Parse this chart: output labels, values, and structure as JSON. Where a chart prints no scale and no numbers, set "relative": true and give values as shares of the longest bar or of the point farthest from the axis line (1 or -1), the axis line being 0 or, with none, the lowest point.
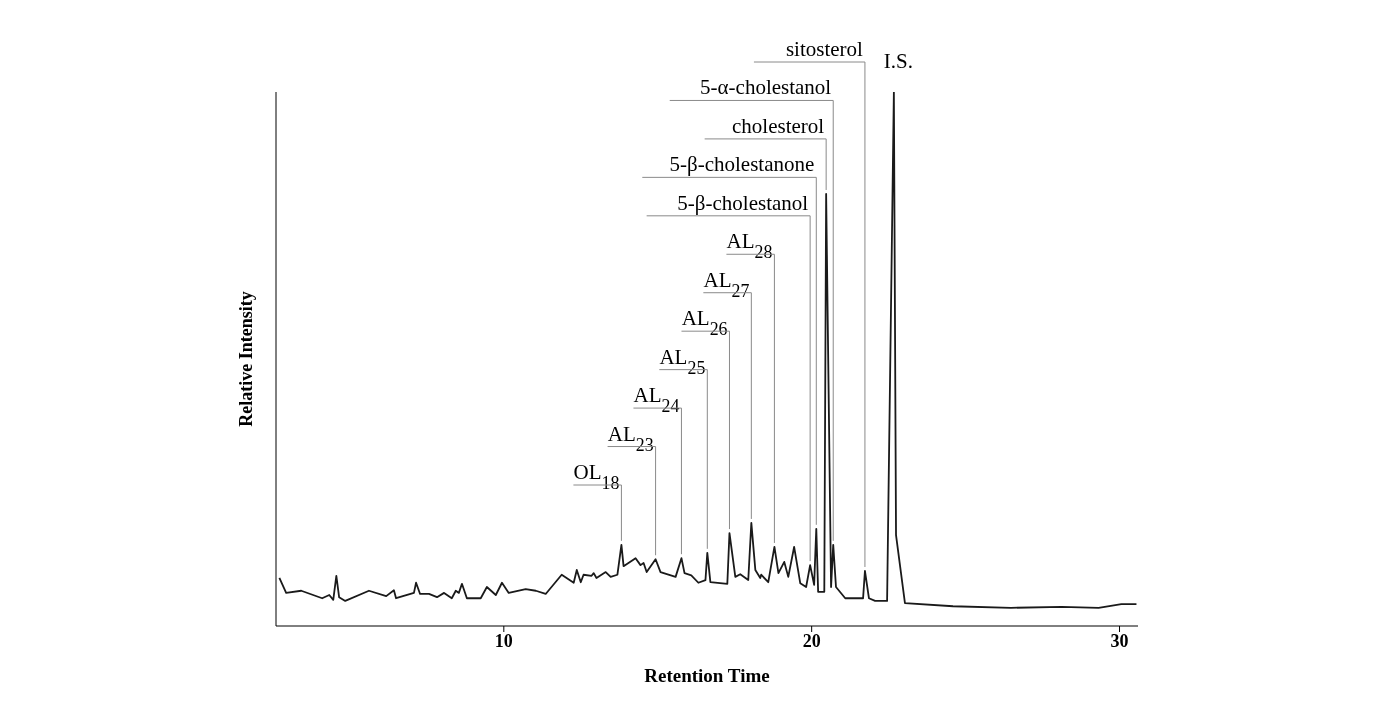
{
  "chart_data": {
    "type": "line",
    "relative": true,
    "xlabel": "Retention Time",
    "ylabel": "Relative Intensity",
    "color": "#1a1a1a",
    "xlim": [
      2.6,
      30.6
    ],
    "xticks": [
      10,
      20,
      30
    ],
    "marker": "none",
    "line_style": "solid",
    "x": [
      2.71,
      2.93,
      3.42,
      4.1,
      4.33,
      4.46,
      4.56,
      4.65,
      4.85,
      5.62,
      6.18,
      6.43,
      6.5,
      7.08,
      7.15,
      7.28,
      7.57,
      7.83,
      8.06,
      8.31,
      8.44,
      8.54,
      8.64,
      8.8,
      9.25,
      9.45,
      9.74,
      9.94,
      10.16,
      10.71,
      11.04,
      11.36,
      11.88,
      12.27,
      12.37,
      12.5,
      12.59,
      12.85,
      12.92,
      13.01,
      13.31,
      13.47,
      13.69,
      13.82,
      13.89,
      14.28,
      14.44,
      14.54,
      14.64,
      14.93,
      15.09,
      15.58,
      15.77,
      15.87,
      16.09,
      16.32,
      16.55,
      16.61,
      16.71,
      17.26,
      17.33,
      17.52,
      17.68,
      17.94,
      18.04,
      18.17,
      18.33,
      18.36,
      18.59,
      18.79,
      18.92,
      19.11,
      19.24,
      19.43,
      19.63,
      19.82,
      19.95,
      20.08,
      20.15,
      20.21,
      20.41,
      20.47,
      20.63,
      20.7,
      20.79,
      21.09,
      21.67,
      21.73,
      21.86,
      22.06,
      22.45,
      22.67,
      22.74,
      23.03,
      24.59,
      26.47,
      28.12,
      29.32,
      30.06,
      30.55
    ],
    "values": [
      0.09,
      0.062,
      0.066,
      0.052,
      0.058,
      0.049,
      0.094,
      0.054,
      0.047,
      0.066,
      0.056,
      0.067,
      0.052,
      0.062,
      0.081,
      0.06,
      0.06,
      0.054,
      0.062,
      0.052,
      0.066,
      0.062,
      0.079,
      0.052,
      0.052,
      0.073,
      0.058,
      0.081,
      0.062,
      0.069,
      0.066,
      0.06,
      0.096,
      0.081,
      0.105,
      0.082,
      0.096,
      0.094,
      0.099,
      0.09,
      0.101,
      0.092,
      0.096,
      0.152,
      0.112,
      0.127,
      0.114,
      0.118,
      0.101,
      0.125,
      0.101,
      0.092,
      0.127,
      0.099,
      0.095,
      0.081,
      0.086,
      0.137,
      0.082,
      0.079,
      0.174,
      0.092,
      0.097,
      0.086,
      0.193,
      0.105,
      0.09,
      0.096,
      0.082,
      0.148,
      0.099,
      0.12,
      0.092,
      0.148,
      0.08,
      0.073,
      0.114,
      0.077,
      0.182,
      0.064,
      0.064,
      0.809,
      0.073,
      0.152,
      0.073,
      0.052,
      0.052,
      0.103,
      0.052,
      0.047,
      0.047,
      1.0,
      0.17,
      0.043,
      0.037,
      0.034,
      0.036,
      0.034,
      0.041,
      0.041
    ],
    "annotations": [
      {
        "text": "OL$_{18}$",
        "x": 13.82,
        "y": 0.152
      },
      {
        "text": "AL$_{23}$",
        "x": 14.93,
        "y": 0.125
      },
      {
        "text": "AL$_{24}$",
        "x": 15.77,
        "y": 0.127
      },
      {
        "text": "AL$_{25}$",
        "x": 16.61,
        "y": 0.137
      },
      {
        "text": "AL$_{26}$",
        "x": 17.33,
        "y": 0.174
      },
      {
        "text": "AL$_{27}$",
        "x": 18.04,
        "y": 0.193
      },
      {
        "text": "AL$_{28}$",
        "x": 18.79,
        "y": 0.148
      },
      {
        "text": "5-β-cholestanol",
        "x": 19.95,
        "y": 0.114
      },
      {
        "text": "5-β-cholestanone",
        "x": 20.15,
        "y": 0.182
      },
      {
        "text": "cholesterol",
        "x": 20.47,
        "y": 0.809
      },
      {
        "text": "5-α-cholestanol",
        "x": 20.7,
        "y": 0.152
      },
      {
        "text": "sitosterol",
        "x": 21.73,
        "y": 0.103
      },
      {
        "text": "I.S.",
        "x": 22.67,
        "y": 1.0
      }
    ]
  }
}
